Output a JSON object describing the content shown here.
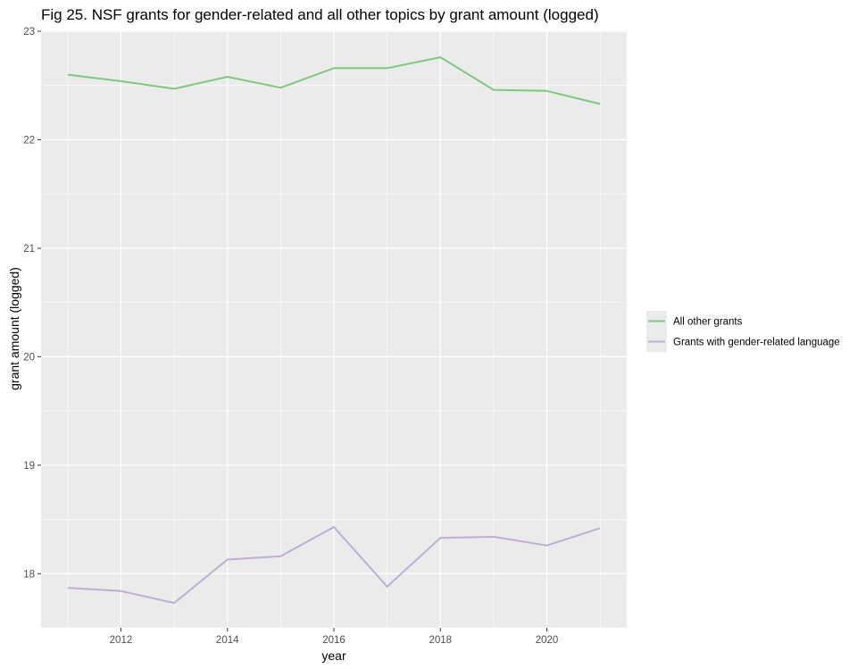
{
  "chart_data": {
    "type": "line",
    "title": "Fig 25. NSF grants for gender-related and all other topics by grant amount (logged)",
    "xlabel": "year",
    "ylabel": "grant amount (logged)",
    "xlim": [
      2010.5,
      2021.5
    ],
    "ylim": [
      17.5,
      23
    ],
    "x_ticks": [
      2012,
      2014,
      2016,
      2018,
      2020
    ],
    "y_ticks": [
      18,
      19,
      20,
      21,
      22,
      23
    ],
    "grid": true,
    "legend_position": "right",
    "x": [
      2011,
      2012,
      2013,
      2014,
      2015,
      2016,
      2017,
      2018,
      2019,
      2020,
      2021
    ],
    "series": [
      {
        "name": "All other grants",
        "color": "#7fc97f",
        "values": [
          22.6,
          22.54,
          22.47,
          22.58,
          22.48,
          22.66,
          22.66,
          22.76,
          22.46,
          22.45,
          22.33
        ]
      },
      {
        "name": "Grants with gender-related language",
        "color": "#beaed4",
        "values": [
          17.87,
          17.84,
          17.73,
          18.13,
          18.16,
          18.43,
          17.88,
          18.33,
          18.34,
          18.26,
          18.42
        ]
      }
    ]
  }
}
